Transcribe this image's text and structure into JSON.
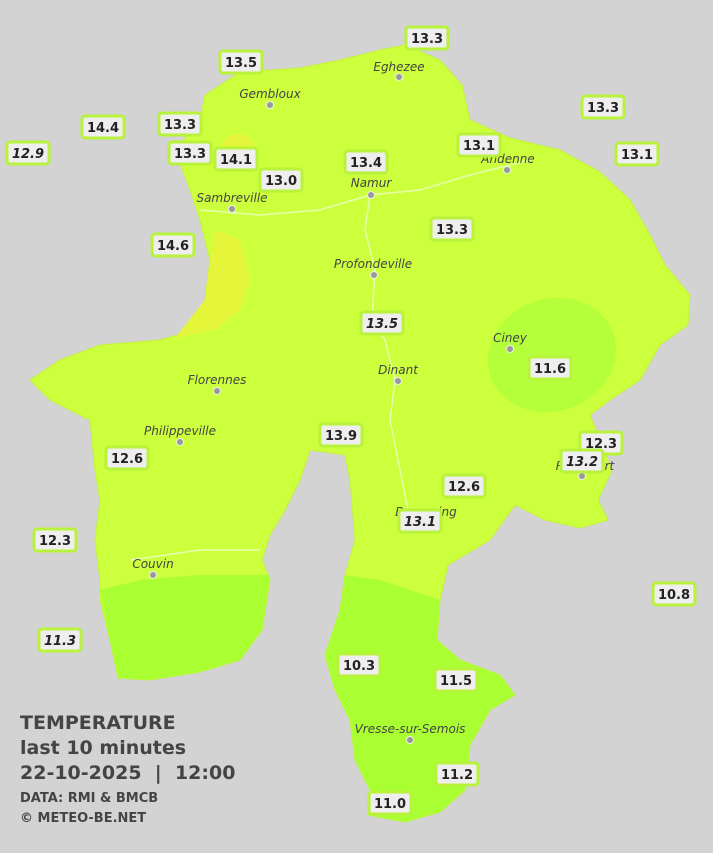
{
  "legend": {
    "title": "TEMPERATURE",
    "period": "last 10 minutes",
    "datetime": "22-10-2025  |  12:00",
    "source": "DATA: RMI & BMCB",
    "credit": "© METEO-BE.NET"
  },
  "cities": [
    "Eghezee",
    "Gembloux",
    "Andenne",
    "Namur",
    "Sambreville",
    "Profondeville",
    "Ciney",
    "Dinant",
    "Florennes",
    "Philippeville",
    "Rochefort",
    "Beauraing",
    "Couvin",
    "Vresse-sur-Semois"
  ],
  "stations": [
    "13.3",
    "13.5",
    "13.3",
    "14.4",
    "13.3",
    "12.9",
    "13.3",
    "14.1",
    "13.1",
    "13.1",
    "13.4",
    "13.0",
    "13.3",
    "14.6",
    "13.5",
    "11.6",
    "13.9",
    "12.3",
    "13.2",
    "12.6",
    "12.6",
    "13.1",
    "12.3",
    "10.8",
    "11.3",
    "10.3",
    "11.5",
    "11.2",
    "11.0"
  ]
}
